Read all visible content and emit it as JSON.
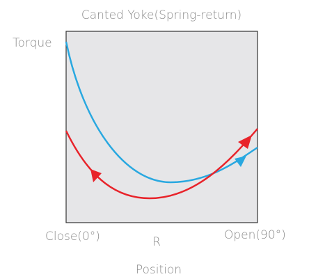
{
  "title": "Canted Yoke(Spring-return)",
  "y_label": "Torque",
  "x_left": "Close(0°)",
  "x_mid": "R",
  "x_right": "Open(90°)",
  "x_label": "Position"
}
